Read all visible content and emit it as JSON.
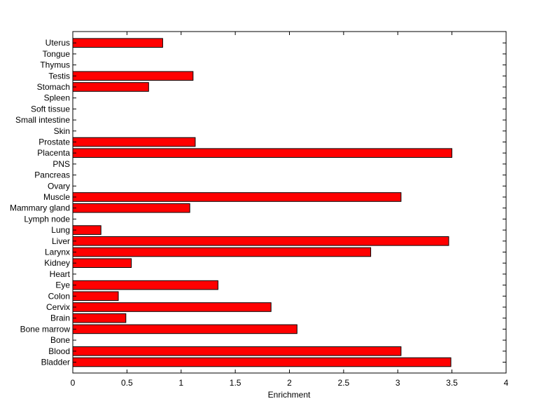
{
  "chart_data": {
    "type": "bar",
    "orientation": "horizontal",
    "categories": [
      "Bladder",
      "Blood",
      "Bone",
      "Bone marrow",
      "Brain",
      "Cervix",
      "Colon",
      "Eye",
      "Heart",
      "Kidney",
      "Larynx",
      "Liver",
      "Lung",
      "Lymph node",
      "Mammary gland",
      "Muscle",
      "Ovary",
      "Pancreas",
      "PNS",
      "Placenta",
      "Prostate",
      "Skin",
      "Small intestine",
      "Soft tissue",
      "Spleen",
      "Stomach",
      "Testis",
      "Thymus",
      "Tongue",
      "Uterus"
    ],
    "values": [
      3.49,
      3.03,
      0,
      2.07,
      0.49,
      1.83,
      0.42,
      1.34,
      0,
      0.54,
      2.75,
      3.47,
      0.26,
      0,
      1.08,
      3.03,
      0,
      0,
      0,
      3.5,
      1.13,
      0,
      0,
      0,
      0,
      0.7,
      1.11,
      0,
      0,
      0.83
    ],
    "xlabel": "Enrichment",
    "ylabel": "",
    "xlim": [
      0,
      4
    ],
    "xticks": [
      "0",
      "0.5",
      "1",
      "1.5",
      "2",
      "2.5",
      "3",
      "3.5",
      "4"
    ],
    "grid": false,
    "bar_color": "#ff0000",
    "bar_edge_color": "#000000"
  }
}
